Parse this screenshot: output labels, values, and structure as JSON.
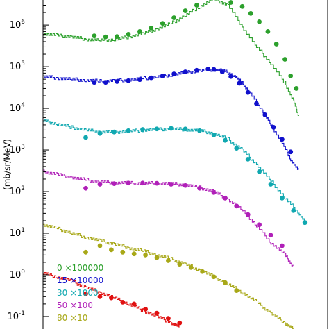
{
  "chart_data": {
    "type": "line",
    "title": "",
    "xlabel": "",
    "ylabel": "(mb/sr/MeV)",
    "y_scale": "log",
    "ylim": [
      0.05,
      4000000
    ],
    "xlim": [
      0,
      1
    ],
    "grid": false,
    "legend_position": "bottom-left",
    "ytick_labels": [
      {
        "base": "10",
        "exp": "-1",
        "value": 0.1
      },
      {
        "base": "10",
        "exp": "0",
        "value": 1
      },
      {
        "base": "10",
        "exp": "1",
        "value": 10
      },
      {
        "base": "10",
        "exp": "2",
        "value": 100
      },
      {
        "base": "10",
        "exp": "3",
        "value": 1000
      },
      {
        "base": "10",
        "exp": "4",
        "value": 10000
      },
      {
        "base": "10",
        "exp": "5",
        "value": 100000
      },
      {
        "base": "10",
        "exp": "6",
        "value": 1000000
      }
    ],
    "series": [
      {
        "name": "0 ×100000",
        "color": "#2ca02c",
        "curve": [
          [
            0.0,
            620000
          ],
          [
            0.05,
            560000
          ],
          [
            0.1,
            520000
          ],
          [
            0.15,
            460000
          ],
          [
            0.2,
            430000
          ],
          [
            0.25,
            450000
          ],
          [
            0.3,
            520000
          ],
          [
            0.35,
            620000
          ],
          [
            0.4,
            800000
          ],
          [
            0.45,
            1100000
          ],
          [
            0.5,
            1700000
          ],
          [
            0.55,
            2800000
          ],
          [
            0.6,
            4200000
          ],
          [
            0.65,
            3000000
          ],
          [
            0.7,
            900000
          ],
          [
            0.75,
            300000
          ],
          [
            0.8,
            120000
          ],
          [
            0.85,
            40000
          ],
          [
            0.88,
            15000
          ],
          [
            0.9,
            6000
          ]
        ],
        "points": [
          [
            0.18,
            550000
          ],
          [
            0.22,
            520000
          ],
          [
            0.26,
            530000
          ],
          [
            0.3,
            600000
          ],
          [
            0.34,
            700000
          ],
          [
            0.38,
            850000
          ],
          [
            0.42,
            1100000
          ],
          [
            0.46,
            1500000
          ],
          [
            0.5,
            2200000
          ],
          [
            0.54,
            3000000
          ],
          [
            0.66,
            3500000
          ],
          [
            0.7,
            2800000
          ],
          [
            0.73,
            1900000
          ],
          [
            0.76,
            1200000
          ],
          [
            0.79,
            700000
          ],
          [
            0.82,
            350000
          ],
          [
            0.85,
            150000
          ],
          [
            0.87,
            60000
          ],
          [
            0.89,
            30000
          ]
        ]
      },
      {
        "name": "15 ×10000",
        "color": "#1010cc",
        "curve": [
          [
            0.0,
            58000
          ],
          [
            0.05,
            54000
          ],
          [
            0.1,
            50000
          ],
          [
            0.15,
            47000
          ],
          [
            0.2,
            45000
          ],
          [
            0.25,
            46000
          ],
          [
            0.3,
            48000
          ],
          [
            0.35,
            52000
          ],
          [
            0.4,
            57000
          ],
          [
            0.45,
            64000
          ],
          [
            0.5,
            72000
          ],
          [
            0.55,
            80000
          ],
          [
            0.6,
            85000
          ],
          [
            0.63,
            82000
          ],
          [
            0.67,
            62000
          ],
          [
            0.7,
            40000
          ],
          [
            0.73,
            22000
          ],
          [
            0.77,
            9000
          ],
          [
            0.8,
            4000
          ],
          [
            0.84,
            1500
          ],
          [
            0.87,
            600
          ],
          [
            0.9,
            300
          ]
        ],
        "points": [
          [
            0.18,
            42000
          ],
          [
            0.22,
            42000
          ],
          [
            0.26,
            44000
          ],
          [
            0.3,
            46000
          ],
          [
            0.34,
            49000
          ],
          [
            0.38,
            54000
          ],
          [
            0.42,
            60000
          ],
          [
            0.46,
            67000
          ],
          [
            0.5,
            75000
          ],
          [
            0.54,
            82000
          ],
          [
            0.58,
            88000
          ],
          [
            0.6,
            86000
          ],
          [
            0.63,
            75000
          ],
          [
            0.66,
            58000
          ],
          [
            0.69,
            40000
          ],
          [
            0.72,
            24000
          ],
          [
            0.75,
            13000
          ],
          [
            0.78,
            7000
          ],
          [
            0.81,
            3500
          ],
          [
            0.84,
            1800
          ],
          [
            0.87,
            900
          ]
        ]
      },
      {
        "name": "30 ×1000",
        "color": "#10a8b0",
        "curve": [
          [
            0.0,
            5000
          ],
          [
            0.05,
            4200
          ],
          [
            0.1,
            3500
          ],
          [
            0.15,
            3000
          ],
          [
            0.2,
            2700
          ],
          [
            0.25,
            2700
          ],
          [
            0.3,
            2800
          ],
          [
            0.35,
            3000
          ],
          [
            0.4,
            3100
          ],
          [
            0.45,
            3200
          ],
          [
            0.5,
            3100
          ],
          [
            0.55,
            2900
          ],
          [
            0.6,
            2500
          ],
          [
            0.65,
            1800
          ],
          [
            0.7,
            1000
          ],
          [
            0.75,
            450
          ],
          [
            0.8,
            180
          ],
          [
            0.85,
            70
          ],
          [
            0.9,
            30
          ],
          [
            0.93,
            15
          ]
        ],
        "points": [
          [
            0.15,
            2000
          ],
          [
            0.2,
            2500
          ],
          [
            0.25,
            2700
          ],
          [
            0.3,
            2900
          ],
          [
            0.35,
            3100
          ],
          [
            0.4,
            3200
          ],
          [
            0.45,
            3300
          ],
          [
            0.5,
            3200
          ],
          [
            0.55,
            2900
          ],
          [
            0.6,
            2300
          ],
          [
            0.64,
            1700
          ],
          [
            0.68,
            1100
          ],
          [
            0.72,
            600
          ],
          [
            0.76,
            300
          ],
          [
            0.8,
            150
          ],
          [
            0.84,
            70
          ],
          [
            0.88,
            35
          ],
          [
            0.92,
            18
          ]
        ]
      },
      {
        "name": "50 ×100",
        "color": "#b020b8",
        "curve": [
          [
            0.0,
            300
          ],
          [
            0.05,
            260
          ],
          [
            0.1,
            220
          ],
          [
            0.15,
            190
          ],
          [
            0.2,
            175
          ],
          [
            0.25,
            165
          ],
          [
            0.3,
            160
          ],
          [
            0.35,
            158
          ],
          [
            0.4,
            160
          ],
          [
            0.45,
            155
          ],
          [
            0.5,
            145
          ],
          [
            0.55,
            125
          ],
          [
            0.6,
            100
          ],
          [
            0.65,
            65
          ],
          [
            0.7,
            35
          ],
          [
            0.75,
            15
          ],
          [
            0.8,
            6
          ],
          [
            0.85,
            3
          ],
          [
            0.88,
            1.5
          ]
        ],
        "points": [
          [
            0.15,
            120
          ],
          [
            0.2,
            150
          ],
          [
            0.25,
            155
          ],
          [
            0.3,
            160
          ],
          [
            0.35,
            160
          ],
          [
            0.4,
            158
          ],
          [
            0.45,
            150
          ],
          [
            0.5,
            140
          ],
          [
            0.55,
            120
          ],
          [
            0.6,
            95
          ],
          [
            0.64,
            70
          ],
          [
            0.68,
            45
          ],
          [
            0.72,
            28
          ],
          [
            0.76,
            16
          ],
          [
            0.8,
            9
          ],
          [
            0.84,
            5
          ]
        ]
      },
      {
        "name": "80 ×10",
        "color": "#a8a818",
        "curve": [
          [
            0.0,
            16
          ],
          [
            0.05,
            13
          ],
          [
            0.1,
            10
          ],
          [
            0.15,
            8
          ],
          [
            0.2,
            6.5
          ],
          [
            0.25,
            5.5
          ],
          [
            0.3,
            4.5
          ],
          [
            0.35,
            3.8
          ],
          [
            0.4,
            3.0
          ],
          [
            0.45,
            2.4
          ],
          [
            0.5,
            1.8
          ],
          [
            0.55,
            1.3
          ],
          [
            0.6,
            0.9
          ],
          [
            0.65,
            0.6
          ],
          [
            0.7,
            0.38
          ],
          [
            0.75,
            0.22
          ],
          [
            0.8,
            0.12
          ],
          [
            0.85,
            0.07
          ],
          [
            0.88,
            0.05
          ]
        ],
        "points": [
          [
            0.15,
            3.5
          ],
          [
            0.2,
            5
          ],
          [
            0.24,
            4
          ],
          [
            0.28,
            3.5
          ],
          [
            0.32,
            3.2
          ],
          [
            0.36,
            3
          ],
          [
            0.4,
            2.6
          ],
          [
            0.44,
            2.2
          ],
          [
            0.48,
            1.8
          ],
          [
            0.52,
            1.5
          ],
          [
            0.56,
            1.2
          ],
          [
            0.6,
            0.9
          ],
          [
            0.64,
            0.65
          ],
          [
            0.68,
            0.42
          ]
        ]
      },
      {
        "name": "",
        "color": "#e01010",
        "curve": [
          [
            0.0,
            1.1
          ],
          [
            0.05,
            0.9
          ],
          [
            0.1,
            0.7
          ],
          [
            0.15,
            0.5
          ],
          [
            0.2,
            0.38
          ],
          [
            0.25,
            0.28
          ],
          [
            0.3,
            0.2
          ],
          [
            0.35,
            0.14
          ],
          [
            0.4,
            0.1
          ],
          [
            0.45,
            0.07
          ],
          [
            0.48,
            0.055
          ]
        ],
        "points": [
          [
            0.15,
            0.35
          ],
          [
            0.2,
            0.3
          ],
          [
            0.24,
            0.28
          ],
          [
            0.28,
            0.22
          ],
          [
            0.32,
            0.2
          ],
          [
            0.36,
            0.15
          ],
          [
            0.4,
            0.12
          ],
          [
            0.44,
            0.09
          ],
          [
            0.48,
            0.07
          ]
        ]
      }
    ],
    "legend": [
      {
        "text": "0 ×100000",
        "color": "#2ca02c"
      },
      {
        "text": "15 ×10000",
        "color": "#1010cc"
      },
      {
        "text": "30 ×1000",
        "color": "#10a8b0"
      },
      {
        "text": "50 ×100",
        "color": "#b020b8"
      },
      {
        "text": "80 ×10",
        "color": "#a8a818"
      }
    ]
  }
}
